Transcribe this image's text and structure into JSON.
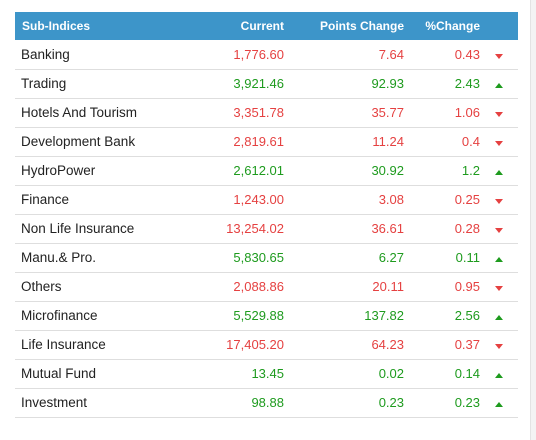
{
  "colors": {
    "header_bg": "#3d95c9",
    "positive": "#1e9b1e",
    "negative": "#e54141"
  },
  "headers": {
    "name": "Sub-Indices",
    "current": "Current",
    "points_change": "Points Change",
    "percent_change": "%Change"
  },
  "rows": [
    {
      "name": "Banking",
      "current": "1,776.60",
      "points": "7.64",
      "percent": "0.43",
      "direction": "down"
    },
    {
      "name": "Trading",
      "current": "3,921.46",
      "points": "92.93",
      "percent": "2.43",
      "direction": "up"
    },
    {
      "name": "Hotels And Tourism",
      "current": "3,351.78",
      "points": "35.77",
      "percent": "1.06",
      "direction": "down"
    },
    {
      "name": "Development Bank",
      "current": "2,819.61",
      "points": "11.24",
      "percent": "0.4",
      "direction": "down"
    },
    {
      "name": "HydroPower",
      "current": "2,612.01",
      "points": "30.92",
      "percent": "1.2",
      "direction": "up"
    },
    {
      "name": "Finance",
      "current": "1,243.00",
      "points": "3.08",
      "percent": "0.25",
      "direction": "down"
    },
    {
      "name": "Non Life Insurance",
      "current": "13,254.02",
      "points": "36.61",
      "percent": "0.28",
      "direction": "down"
    },
    {
      "name": "Manu.& Pro.",
      "current": "5,830.65",
      "points": "6.27",
      "percent": "0.11",
      "direction": "up"
    },
    {
      "name": "Others",
      "current": "2,088.86",
      "points": "20.11",
      "percent": "0.95",
      "direction": "down"
    },
    {
      "name": "Microfinance",
      "current": "5,529.88",
      "points": "137.82",
      "percent": "2.56",
      "direction": "up"
    },
    {
      "name": "Life Insurance",
      "current": "17,405.20",
      "points": "64.23",
      "percent": "0.37",
      "direction": "down"
    },
    {
      "name": "Mutual Fund",
      "current": "13.45",
      "points": "0.02",
      "percent": "0.14",
      "direction": "up"
    },
    {
      "name": "Investment",
      "current": "98.88",
      "points": "0.23",
      "percent": "0.23",
      "direction": "up"
    }
  ]
}
